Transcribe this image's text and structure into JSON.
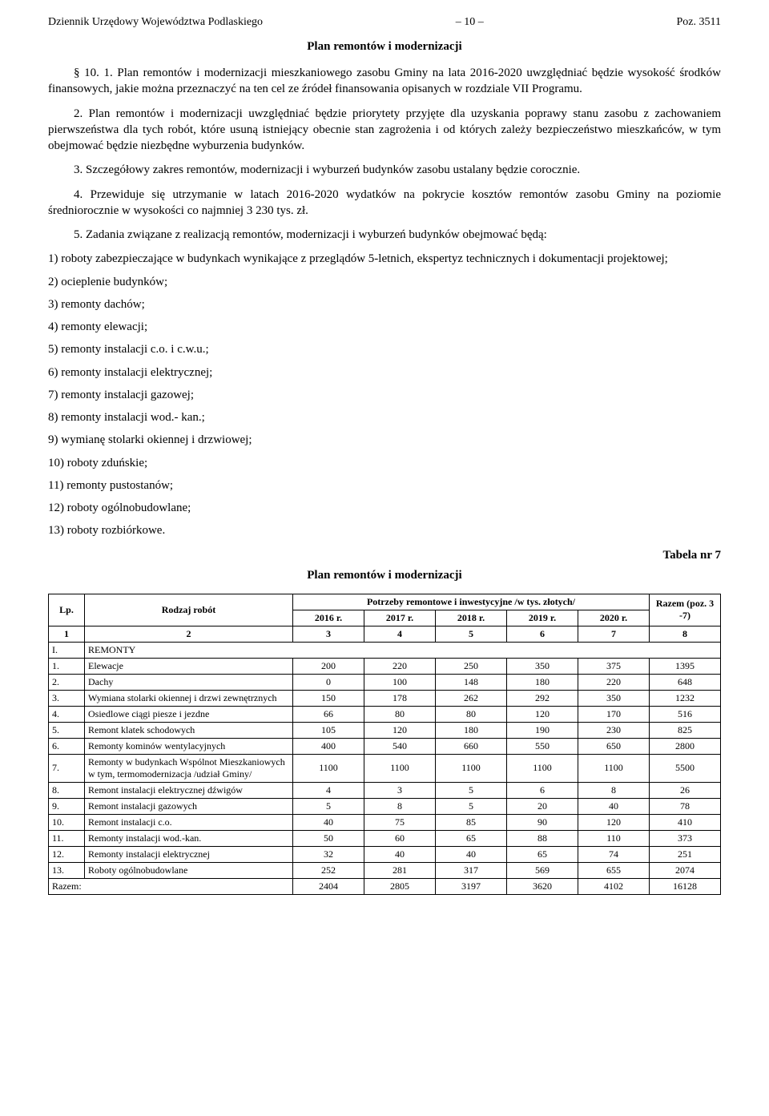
{
  "header": {
    "left": "Dziennik Urzędowy Województwa Podlaskiego",
    "center": "– 10 –",
    "right": "Poz. 3511"
  },
  "title1": "Plan remontów i modernizacji",
  "paragraphs": {
    "p1": "§ 10. 1. Plan remontów i modernizacji mieszkaniowego zasobu Gminy na lata 2016-2020 uwzględniać będzie wysokość środków finansowych, jakie można przeznaczyć na ten cel ze źródeł finansowania opisanych w rozdziale VII Programu.",
    "p2": "2. Plan remontów i modernizacji uwzględniać będzie priorytety przyjęte dla uzyskania poprawy stanu zasobu z zachowaniem pierwszeństwa dla tych robót, które usuną istniejący obecnie stan zagrożenia i od których zależy bezpieczeństwo mieszkańców, w tym obejmować będzie niezbędne wyburzenia budynków.",
    "p3": "3. Szczegółowy zakres remontów, modernizacji i wyburzeń budynków zasobu ustalany będzie corocznie.",
    "p4": "4. Przewiduje się utrzymanie w latach 2016-2020 wydatków na pokrycie kosztów remontów zasobu Gminy na poziomie średniorocznie w wysokości co najmniej 3 230 tys. zł.",
    "p5": "5. Zadania związane z realizacją remontów, modernizacji i wyburzeń budynków obejmować będą:"
  },
  "list": [
    "1) roboty zabezpieczające w budynkach wynikające z przeglądów 5-letnich, ekspertyz technicznych i dokumentacji projektowej;",
    "2) ocieplenie budynków;",
    "3) remonty dachów;",
    "4) remonty elewacji;",
    "5) remonty instalacji c.o. i  c.w.u.;",
    "6) remonty instalacji elektrycznej;",
    "7) remonty instalacji gazowej;",
    "8) remonty instalacji wod.- kan.;",
    "9) wymianę stolarki okiennej i drzwiowej;",
    "10) roboty zduńskie;",
    "11) remonty pustostanów;",
    "12) roboty ogólnobudowlane;",
    "13) roboty rozbiórkowe."
  ],
  "table_label": "Tabela nr 7",
  "title2": "Plan remontów i modernizacji",
  "table": {
    "head": {
      "lp": "Lp.",
      "rodzaj": "Rodzaj robót",
      "potrzeby": "Potrzeby remontowe i inwestycyjne /w tys. złotych/",
      "razem": "Razem (poz. 3 -7)",
      "years": [
        "2016 r.",
        "2017 r.",
        "2018 r.",
        "2019 r.",
        "2020 r."
      ],
      "colnums": [
        "1",
        "2",
        "3",
        "4",
        "5",
        "6",
        "7",
        "8"
      ]
    },
    "section_row": {
      "lp": "I.",
      "label": "REMONTY"
    },
    "rows": [
      {
        "lp": "1.",
        "label": "Elewacje",
        "v": [
          "200",
          "220",
          "250",
          "350",
          "375",
          "1395"
        ]
      },
      {
        "lp": "2.",
        "label": "Dachy",
        "v": [
          "0",
          "100",
          "148",
          "180",
          "220",
          "648"
        ]
      },
      {
        "lp": "3.",
        "label": "Wymiana stolarki okiennej i drzwi zewnętrznych",
        "v": [
          "150",
          "178",
          "262",
          "292",
          "350",
          "1232"
        ]
      },
      {
        "lp": "4.",
        "label": "Osiedlowe ciągi piesze i jezdne",
        "v": [
          "66",
          "80",
          "80",
          "120",
          "170",
          "516"
        ]
      },
      {
        "lp": "5.",
        "label": "Remont klatek schodowych",
        "v": [
          "105",
          "120",
          "180",
          "190",
          "230",
          "825"
        ]
      },
      {
        "lp": "6.",
        "label": "Remonty kominów wentylacyjnych",
        "v": [
          "400",
          "540",
          "660",
          "550",
          "650",
          "2800"
        ]
      },
      {
        "lp": "7.",
        "label": "Remonty w budynkach Wspólnot Mieszkaniowych w tym, termomodernizacja /udział Gminy/",
        "v": [
          "1100",
          "1100",
          "1100",
          "1100",
          "1100",
          "5500"
        ]
      },
      {
        "lp": "8.",
        "label": "Remont instalacji elektrycznej dźwigów",
        "v": [
          "4",
          "3",
          "5",
          "6",
          "8",
          "26"
        ]
      },
      {
        "lp": "9.",
        "label": "Remont instalacji gazowych",
        "v": [
          "5",
          "8",
          "5",
          "20",
          "40",
          "78"
        ]
      },
      {
        "lp": "10.",
        "label": "Remont instalacji c.o.",
        "v": [
          "40",
          "75",
          "85",
          "90",
          "120",
          "410"
        ]
      },
      {
        "lp": "11.",
        "label": "Remonty instalacji wod.-kan.",
        "v": [
          "50",
          "60",
          "65",
          "88",
          "110",
          "373"
        ]
      },
      {
        "lp": "12.",
        "label": "Remonty instalacji elektrycznej",
        "v": [
          "32",
          "40",
          "40",
          "65",
          "74",
          "251"
        ]
      },
      {
        "lp": "13.",
        "label": "Roboty ogólnobudowlane",
        "v": [
          "252",
          "281",
          "317",
          "569",
          "655",
          "2074"
        ]
      }
    ],
    "total": {
      "label": "Razem:",
      "v": [
        "2404",
        "2805",
        "3197",
        "3620",
        "4102",
        "16128"
      ]
    }
  }
}
